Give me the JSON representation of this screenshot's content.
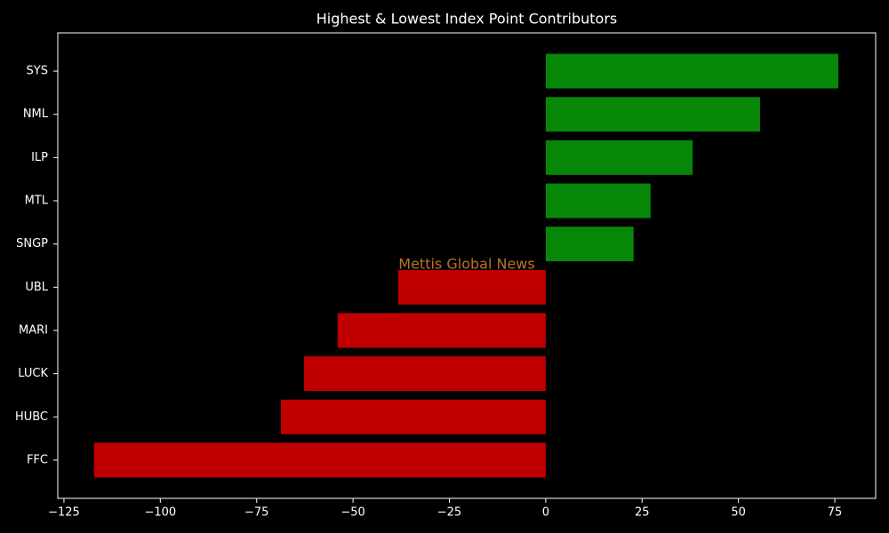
{
  "chart_data": {
    "type": "barh",
    "title": "Highest & Lowest Index Point Contributors",
    "categories": [
      "SYS",
      "NML",
      "ILP",
      "MTL",
      "SNGP",
      "UBL",
      "MARI",
      "LUCK",
      "HUBC",
      "FFC"
    ],
    "values": [
      75.9,
      55.6,
      38.1,
      27.2,
      22.8,
      -38.3,
      -54,
      -62.7,
      -68.7,
      -117.2
    ],
    "colors": [
      "#078707",
      "#078707",
      "#078707",
      "#078707",
      "#078707",
      "#c00000",
      "#c00000",
      "#c00000",
      "#c00000",
      "#c00000"
    ],
    "xlim": [
      -126.6,
      85.6
    ],
    "xticks": [
      {
        "value": -125,
        "label": "−125"
      },
      {
        "value": -100,
        "label": "−100"
      },
      {
        "value": -75,
        "label": "−75"
      },
      {
        "value": -50,
        "label": "−50"
      },
      {
        "value": -25,
        "label": "−25"
      },
      0,
      25,
      50,
      75
    ],
    "annotation": "Mettis Global News"
  }
}
